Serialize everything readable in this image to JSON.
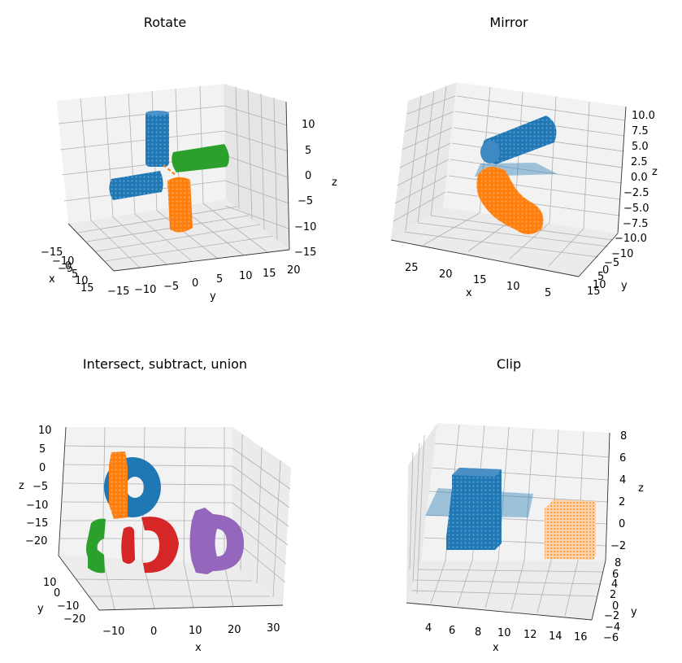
{
  "figure": {
    "background": "#ffffff"
  },
  "colors": {
    "blue": "#1f77b4",
    "orange": "#ff7f0e",
    "green": "#2ca02c",
    "red": "#d62728",
    "purple": "#9467bd",
    "pane": "#f2f2f2",
    "grid": "#b0b0b0"
  },
  "chart_data": [
    {
      "type": "scatter3d",
      "title": "Rotate",
      "xlabel": "x",
      "ylabel": "y",
      "zlabel": "z",
      "xticks": [
        "−15",
        "−10",
        "−5",
        "0",
        "5",
        "10",
        "15"
      ],
      "yticks": [
        "−15",
        "−10",
        "−5",
        "0",
        "5",
        "10",
        "15",
        "20"
      ],
      "zticks": [
        "10",
        "5",
        "0",
        "−5",
        "−10",
        "−15"
      ],
      "xlim": [
        -15,
        15
      ],
      "ylim": [
        -15,
        20
      ],
      "zlim": [
        -15,
        12
      ],
      "grid": true,
      "series": [
        {
          "color": "blue",
          "shape": "cylinder",
          "description_values": {
            "count": 2
          }
        },
        {
          "color": "orange",
          "shape": "cylinder",
          "description_values": {
            "count": 1
          }
        },
        {
          "color": "green",
          "shape": "cylinder",
          "description_values": {
            "count": 1
          }
        }
      ]
    },
    {
      "type": "scatter3d",
      "title": "Mirror",
      "xlabel": "x",
      "ylabel": "y",
      "zlabel": "z",
      "xticks": [
        "25",
        "20",
        "15",
        "10",
        "5"
      ],
      "yticks": [
        "−10",
        "−5",
        "0",
        "5",
        "10",
        "15"
      ],
      "zticks": [
        "10.0",
        "7.5",
        "5.0",
        "2.5",
        "0.0",
        "−2.5",
        "−5.0",
        "−7.5",
        "−10.0"
      ],
      "xlim": [
        28,
        3
      ],
      "ylim": [
        -12,
        15
      ],
      "zlim": [
        -10,
        10
      ],
      "grid": true,
      "series": [
        {
          "color": "blue",
          "shape": "cylinder"
        },
        {
          "color": "orange",
          "shape": "bent-cylinder"
        },
        {
          "color": "blue",
          "shape": "plane",
          "alpha": 0.4
        }
      ]
    },
    {
      "type": "scatter3d",
      "title": "Intersect, subtract, union",
      "xlabel": "x",
      "ylabel": "y",
      "zlabel": "z",
      "xticks": [
        "−10",
        "0",
        "10",
        "20",
        "30"
      ],
      "yticks": [
        "10",
        "0",
        "−10",
        "−20"
      ],
      "zticks": [
        "10",
        "5",
        "0",
        "−5",
        "−10",
        "−15",
        "−20"
      ],
      "xlim": [
        -13,
        33
      ],
      "ylim": [
        -25,
        15
      ],
      "zlim": [
        -25,
        10
      ],
      "grid": true,
      "series": [
        {
          "color": "blue",
          "shape": "torus"
        },
        {
          "color": "orange",
          "shape": "slab"
        },
        {
          "color": "green",
          "shape": "intersection"
        },
        {
          "color": "red",
          "shape": "subtraction"
        },
        {
          "color": "purple",
          "shape": "union"
        }
      ]
    },
    {
      "type": "scatter3d",
      "title": "Clip",
      "xlabel": "x",
      "ylabel": "y",
      "zlabel": "z",
      "xticks": [
        "4",
        "6",
        "8",
        "10",
        "12",
        "14",
        "16"
      ],
      "yticks": [
        "8",
        "6",
        "4",
        "2",
        "0",
        "−2",
        "−4",
        "−6"
      ],
      "zticks": [
        "8",
        "6",
        "4",
        "2",
        "0",
        "−2"
      ],
      "xlim": [
        2.5,
        17
      ],
      "ylim": [
        -7,
        9
      ],
      "zlim": [
        -4,
        8
      ],
      "grid": true,
      "series": [
        {
          "color": "blue",
          "shape": "cube"
        },
        {
          "color": "orange",
          "shape": "clipped-cube"
        },
        {
          "color": "blue",
          "shape": "plane",
          "alpha": 0.4
        }
      ]
    }
  ]
}
